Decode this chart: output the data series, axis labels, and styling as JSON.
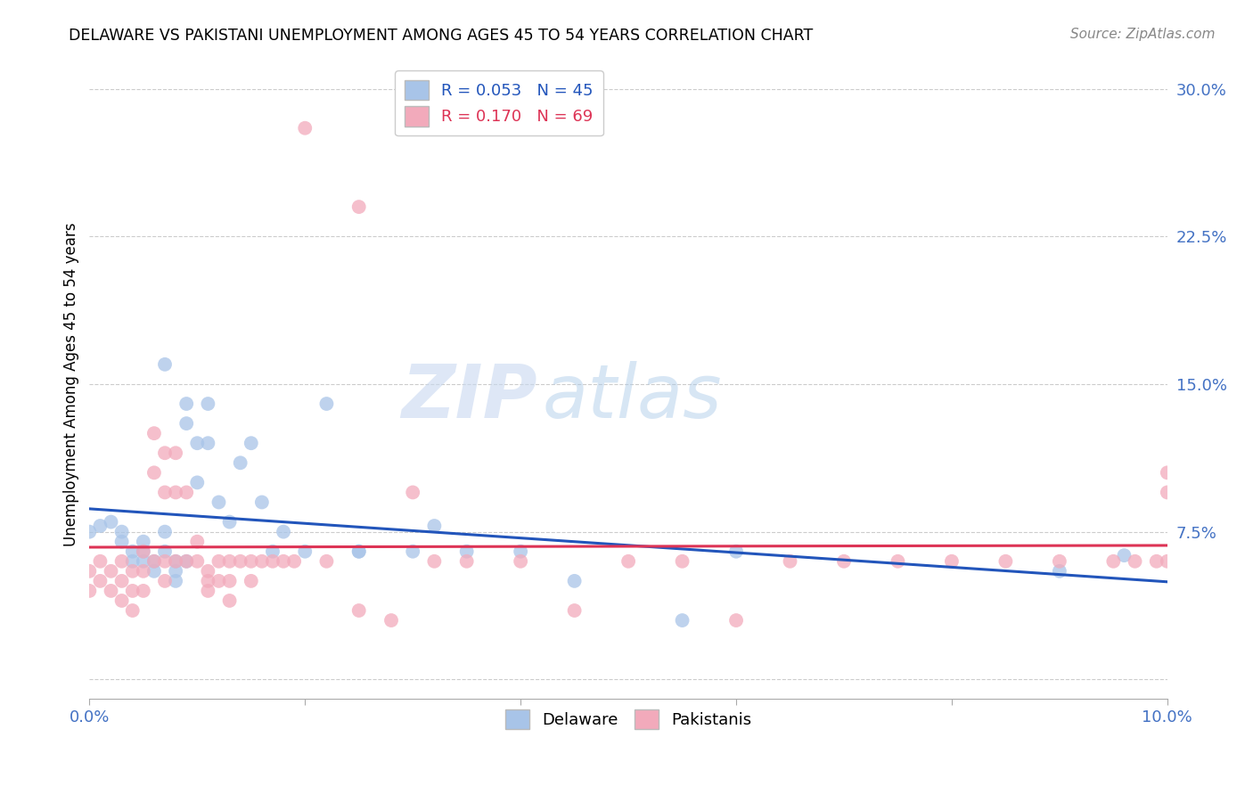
{
  "title": "DELAWARE VS PAKISTANI UNEMPLOYMENT AMONG AGES 45 TO 54 YEARS CORRELATION CHART",
  "source": "Source: ZipAtlas.com",
  "ylabel": "Unemployment Among Ages 45 to 54 years",
  "xlim": [
    0.0,
    0.1
  ],
  "ylim": [
    -0.01,
    0.31
  ],
  "yticks": [
    0.0,
    0.075,
    0.15,
    0.225,
    0.3
  ],
  "ytick_labels": [
    "",
    "7.5%",
    "15.0%",
    "22.5%",
    "30.0%"
  ],
  "xticks": [
    0.0,
    0.02,
    0.04,
    0.06,
    0.08,
    0.1
  ],
  "xtick_labels": [
    "0.0%",
    "",
    "",
    "",
    "",
    "10.0%"
  ],
  "legend_r1": "R = 0.053",
  "legend_n1": "N = 45",
  "legend_r2": "R = 0.170",
  "legend_n2": "N = 69",
  "delaware_color": "#a8c4e8",
  "pakistani_color": "#f2aabb",
  "trend_delaware_color": "#2255bb",
  "trend_pakistani_color": "#dd3355",
  "watermark_zip": "ZIP",
  "watermark_atlas": "atlas",
  "delaware_x": [
    0.0,
    0.001,
    0.002,
    0.003,
    0.003,
    0.004,
    0.004,
    0.005,
    0.005,
    0.005,
    0.006,
    0.006,
    0.007,
    0.007,
    0.007,
    0.008,
    0.008,
    0.008,
    0.009,
    0.009,
    0.009,
    0.01,
    0.01,
    0.011,
    0.011,
    0.012,
    0.013,
    0.014,
    0.015,
    0.016,
    0.017,
    0.018,
    0.02,
    0.022,
    0.025,
    0.025,
    0.03,
    0.032,
    0.035,
    0.04,
    0.045,
    0.055,
    0.06,
    0.09,
    0.096
  ],
  "delaware_y": [
    0.075,
    0.078,
    0.08,
    0.07,
    0.075,
    0.065,
    0.06,
    0.07,
    0.065,
    0.06,
    0.06,
    0.055,
    0.16,
    0.075,
    0.065,
    0.06,
    0.055,
    0.05,
    0.14,
    0.13,
    0.06,
    0.12,
    0.1,
    0.14,
    0.12,
    0.09,
    0.08,
    0.11,
    0.12,
    0.09,
    0.065,
    0.075,
    0.065,
    0.14,
    0.065,
    0.065,
    0.065,
    0.078,
    0.065,
    0.065,
    0.05,
    0.03,
    0.065,
    0.055,
    0.063
  ],
  "pakistani_x": [
    0.0,
    0.0,
    0.001,
    0.001,
    0.002,
    0.002,
    0.003,
    0.003,
    0.003,
    0.004,
    0.004,
    0.004,
    0.005,
    0.005,
    0.005,
    0.006,
    0.006,
    0.006,
    0.007,
    0.007,
    0.007,
    0.007,
    0.008,
    0.008,
    0.008,
    0.009,
    0.009,
    0.01,
    0.01,
    0.011,
    0.011,
    0.011,
    0.012,
    0.012,
    0.013,
    0.013,
    0.013,
    0.014,
    0.015,
    0.015,
    0.016,
    0.017,
    0.018,
    0.019,
    0.02,
    0.022,
    0.025,
    0.025,
    0.028,
    0.03,
    0.032,
    0.035,
    0.04,
    0.045,
    0.05,
    0.055,
    0.06,
    0.065,
    0.07,
    0.075,
    0.08,
    0.085,
    0.09,
    0.095,
    0.097,
    0.099,
    0.1,
    0.1,
    0.1
  ],
  "pakistani_y": [
    0.055,
    0.045,
    0.06,
    0.05,
    0.055,
    0.045,
    0.06,
    0.05,
    0.04,
    0.055,
    0.045,
    0.035,
    0.065,
    0.055,
    0.045,
    0.125,
    0.105,
    0.06,
    0.115,
    0.095,
    0.06,
    0.05,
    0.115,
    0.095,
    0.06,
    0.095,
    0.06,
    0.07,
    0.06,
    0.055,
    0.05,
    0.045,
    0.06,
    0.05,
    0.06,
    0.05,
    0.04,
    0.06,
    0.06,
    0.05,
    0.06,
    0.06,
    0.06,
    0.06,
    0.28,
    0.06,
    0.24,
    0.035,
    0.03,
    0.095,
    0.06,
    0.06,
    0.06,
    0.035,
    0.06,
    0.06,
    0.03,
    0.06,
    0.06,
    0.06,
    0.06,
    0.06,
    0.06,
    0.06,
    0.06,
    0.06,
    0.105,
    0.06,
    0.095
  ]
}
